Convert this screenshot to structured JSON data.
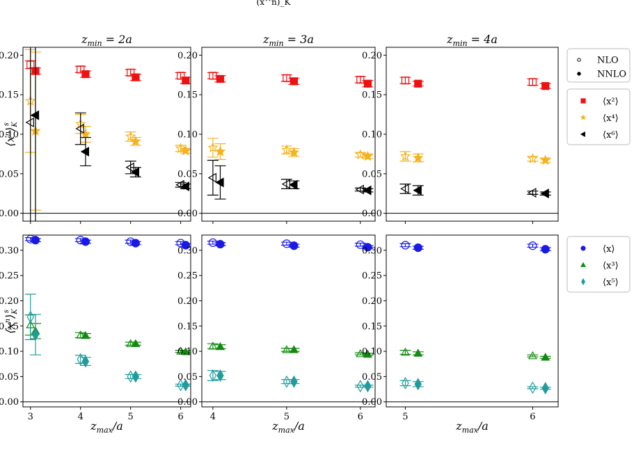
{
  "caption_fragment": "(x^n)_K",
  "colors": {
    "x2": "#ee1111",
    "x4": "#f5b21e",
    "x6": "#000000",
    "x1": "#1a1ae6",
    "x3": "#138a13",
    "x5": "#1f9c9c"
  },
  "column_titles": [
    "z_min = 2a",
    "z_min = 3a",
    "z_min = 4a"
  ],
  "xlabel": "z_max/a",
  "ylabel": "⟨x^n⟩_K^s",
  "legend_method": [
    {
      "label": "NLO",
      "marker": "open-circle"
    },
    {
      "label": "NNLO",
      "marker": "filled-circle"
    }
  ],
  "legend_top": [
    {
      "label": "⟨x²⟩",
      "marker": "square",
      "color": "#ee1111"
    },
    {
      "label": "⟨x⁴⟩",
      "marker": "star",
      "color": "#f5b21e"
    },
    {
      "label": "⟨x⁶⟩",
      "marker": "triangle-left",
      "color": "#000000"
    }
  ],
  "legend_bottom": [
    {
      "label": "⟨x⟩",
      "marker": "circle",
      "color": "#1a1ae6"
    },
    {
      "label": "⟨x³⟩",
      "marker": "triangle-up",
      "color": "#138a13"
    },
    {
      "label": "⟨x⁵⟩",
      "marker": "diamond",
      "color": "#1f9c9c"
    }
  ],
  "chart_data": [
    {
      "type": "scatter",
      "title": "z_min = 2a",
      "row": "top",
      "col": 0,
      "xticks": [
        3,
        4,
        5,
        6
      ],
      "ylim": [
        -0.01,
        0.21
      ],
      "yticks": [
        0.0,
        0.05,
        0.1,
        0.15,
        0.2
      ],
      "series": [
        {
          "name": "⟨x²⟩ NLO",
          "moment": "x2",
          "order": "NLO",
          "x": [
            3,
            4,
            5,
            6
          ],
          "y": [
            0.188,
            0.182,
            0.178,
            0.174
          ],
          "err": [
            0.005,
            0.004,
            0.004,
            0.004
          ]
        },
        {
          "name": "⟨x²⟩ NNLO",
          "moment": "x2",
          "order": "NNLO",
          "x": [
            3,
            4,
            5,
            6
          ],
          "y": [
            0.18,
            0.176,
            0.172,
            0.168
          ],
          "err": [
            0.004,
            0.004,
            0.004,
            0.004
          ]
        },
        {
          "name": "⟨x⁴⟩ NLO",
          "moment": "x4",
          "order": "NLO",
          "x": [
            3,
            4,
            5,
            6
          ],
          "y": [
            0.142,
            0.113,
            0.097,
            0.082
          ],
          "err": [
            0.065,
            0.012,
            0.006,
            0.004
          ]
        },
        {
          "name": "⟨x⁴⟩ NNLO",
          "moment": "x4",
          "order": "NNLO",
          "x": [
            3,
            4,
            5,
            6
          ],
          "y": [
            0.104,
            0.1,
            0.091,
            0.079
          ],
          "err": [
            0.1,
            0.01,
            0.005,
            0.003
          ]
        },
        {
          "name": "⟨x⁶⟩ NLO",
          "moment": "x6",
          "order": "NLO",
          "x": [
            3,
            4,
            5,
            6
          ],
          "y": [
            0.115,
            0.107,
            0.058,
            0.036
          ],
          "err": [
            0.15,
            0.02,
            0.008,
            0.003
          ]
        },
        {
          "name": "⟨x⁶⟩ NNLO",
          "moment": "x6",
          "order": "NNLO",
          "x": [
            3,
            4,
            5,
            6
          ],
          "y": [
            0.124,
            0.078,
            0.052,
            0.034
          ],
          "err": [
            0.26,
            0.018,
            0.006,
            0.003
          ]
        }
      ]
    },
    {
      "type": "scatter",
      "title": "z_min = 3a",
      "row": "top",
      "col": 1,
      "xticks": [
        4,
        5,
        6
      ],
      "ylim": [
        -0.01,
        0.21
      ],
      "yticks": [
        0.0,
        0.05,
        0.1,
        0.15,
        0.2
      ],
      "series": [
        {
          "name": "⟨x²⟩ NLO",
          "moment": "x2",
          "order": "NLO",
          "x": [
            4,
            5,
            6
          ],
          "y": [
            0.174,
            0.171,
            0.169
          ],
          "err": [
            0.004,
            0.004,
            0.004
          ]
        },
        {
          "name": "⟨x²⟩ NNLO",
          "moment": "x2",
          "order": "NNLO",
          "x": [
            4,
            5,
            6
          ],
          "y": [
            0.17,
            0.167,
            0.164
          ],
          "err": [
            0.004,
            0.004,
            0.004
          ]
        },
        {
          "name": "⟨x⁴⟩ NLO",
          "moment": "x4",
          "order": "NLO",
          "x": [
            4,
            5,
            6
          ],
          "y": [
            0.083,
            0.08,
            0.074
          ],
          "err": [
            0.012,
            0.005,
            0.003
          ]
        },
        {
          "name": "⟨x⁴⟩ NNLO",
          "moment": "x4",
          "order": "NNLO",
          "x": [
            4,
            5,
            6
          ],
          "y": [
            0.078,
            0.077,
            0.072
          ],
          "err": [
            0.01,
            0.005,
            0.003
          ]
        },
        {
          "name": "⟨x⁶⟩ NLO",
          "moment": "x6",
          "order": "NLO",
          "x": [
            4,
            5,
            6
          ],
          "y": [
            0.045,
            0.037,
            0.03
          ],
          "err": [
            0.022,
            0.006,
            0.002
          ]
        },
        {
          "name": "⟨x⁶⟩ NNLO",
          "moment": "x6",
          "order": "NNLO",
          "x": [
            4,
            5,
            6
          ],
          "y": [
            0.039,
            0.036,
            0.029
          ],
          "err": [
            0.021,
            0.005,
            0.002
          ]
        }
      ]
    },
    {
      "type": "scatter",
      "title": "z_min = 4a",
      "row": "top",
      "col": 2,
      "xticks": [
        5,
        6
      ],
      "ylim": [
        -0.01,
        0.21
      ],
      "yticks": [
        0.0,
        0.05,
        0.1,
        0.15,
        0.2
      ],
      "series": [
        {
          "name": "⟨x²⟩ NLO",
          "moment": "x2",
          "order": "NLO",
          "x": [
            5,
            6
          ],
          "y": [
            0.168,
            0.166
          ],
          "err": [
            0.004,
            0.004
          ]
        },
        {
          "name": "⟨x²⟩ NNLO",
          "moment": "x2",
          "order": "NNLO",
          "x": [
            5,
            6
          ],
          "y": [
            0.164,
            0.161
          ],
          "err": [
            0.003,
            0.003
          ]
        },
        {
          "name": "⟨x⁴⟩ NLO",
          "moment": "x4",
          "order": "NLO",
          "x": [
            5,
            6
          ],
          "y": [
            0.072,
            0.069
          ],
          "err": [
            0.006,
            0.003
          ]
        },
        {
          "name": "⟨x⁴⟩ NNLO",
          "moment": "x4",
          "order": "NNLO",
          "x": [
            5,
            6
          ],
          "y": [
            0.07,
            0.067
          ],
          "err": [
            0.005,
            0.003
          ]
        },
        {
          "name": "⟨x⁶⟩ NLO",
          "moment": "x6",
          "order": "NLO",
          "x": [
            5,
            6
          ],
          "y": [
            0.031,
            0.026
          ],
          "err": [
            0.006,
            0.002
          ]
        },
        {
          "name": "⟨x⁶⟩ NNLO",
          "moment": "x6",
          "order": "NNLO",
          "x": [
            5,
            6
          ],
          "y": [
            0.029,
            0.025
          ],
          "err": [
            0.006,
            0.002
          ]
        }
      ]
    },
    {
      "type": "scatter",
      "title": "",
      "row": "bottom",
      "col": 0,
      "xticks": [
        3,
        4,
        5,
        6
      ],
      "ylim": [
        -0.01,
        0.33
      ],
      "yticks": [
        0.0,
        0.05,
        0.1,
        0.15,
        0.2,
        0.25,
        0.3
      ],
      "series": [
        {
          "name": "⟨x⟩ NLO",
          "moment": "x1",
          "order": "NLO",
          "x": [
            3,
            4,
            5,
            6
          ],
          "y": [
            0.322,
            0.32,
            0.317,
            0.314
          ],
          "err": [
            0.003,
            0.003,
            0.003,
            0.003
          ]
        },
        {
          "name": "⟨x⟩ NNLO",
          "moment": "x1",
          "order": "NNLO",
          "x": [
            3,
            4,
            5,
            6
          ],
          "y": [
            0.32,
            0.317,
            0.314,
            0.31
          ],
          "err": [
            0.003,
            0.003,
            0.003,
            0.003
          ]
        },
        {
          "name": "⟨x³⟩ NLO",
          "moment": "x3",
          "order": "NLO",
          "x": [
            3,
            4,
            5,
            6
          ],
          "y": [
            0.152,
            0.132,
            0.115,
            0.1
          ],
          "err": [
            0.02,
            0.005,
            0.003,
            0.002
          ]
        },
        {
          "name": "⟨x³⟩ NNLO",
          "moment": "x3",
          "order": "NNLO",
          "x": [
            3,
            4,
            5,
            6
          ],
          "y": [
            0.14,
            0.131,
            0.115,
            0.099
          ],
          "err": [
            0.015,
            0.004,
            0.003,
            0.002
          ]
        },
        {
          "name": "⟨x⁵⟩ NLO",
          "moment": "x5",
          "order": "NLO",
          "x": [
            3,
            4,
            5,
            6
          ],
          "y": [
            0.168,
            0.084,
            0.05,
            0.033
          ],
          "err": [
            0.045,
            0.008,
            0.004,
            0.002
          ]
        },
        {
          "name": "⟨x⁵⟩ NNLO",
          "moment": "x5",
          "order": "NNLO",
          "x": [
            3,
            4,
            5,
            6
          ],
          "y": [
            0.133,
            0.08,
            0.05,
            0.033
          ],
          "err": [
            0.04,
            0.008,
            0.004,
            0.002
          ]
        }
      ]
    },
    {
      "type": "scatter",
      "title": "",
      "row": "bottom",
      "col": 1,
      "xticks": [
        4,
        5,
        6
      ],
      "ylim": [
        -0.01,
        0.33
      ],
      "yticks": [
        0.0,
        0.05,
        0.1,
        0.15,
        0.2,
        0.25,
        0.3
      ],
      "series": [
        {
          "name": "⟨x⟩ NLO",
          "moment": "x1",
          "order": "NLO",
          "x": [
            4,
            5,
            6
          ],
          "y": [
            0.315,
            0.313,
            0.311
          ],
          "err": [
            0.003,
            0.003,
            0.003
          ]
        },
        {
          "name": "⟨x⟩ NNLO",
          "moment": "x1",
          "order": "NNLO",
          "x": [
            4,
            5,
            6
          ],
          "y": [
            0.312,
            0.309,
            0.306
          ],
          "err": [
            0.003,
            0.003,
            0.003
          ]
        },
        {
          "name": "⟨x³⟩ NLO",
          "moment": "x3",
          "order": "NLO",
          "x": [
            4,
            5,
            6
          ],
          "y": [
            0.11,
            0.103,
            0.095
          ],
          "err": [
            0.005,
            0.003,
            0.002
          ]
        },
        {
          "name": "⟨x³⟩ NNLO",
          "moment": "x3",
          "order": "NNLO",
          "x": [
            4,
            5,
            6
          ],
          "y": [
            0.109,
            0.103,
            0.094
          ],
          "err": [
            0.004,
            0.003,
            0.002
          ]
        },
        {
          "name": "⟨x⁵⟩ NLO",
          "moment": "x5",
          "order": "NLO",
          "x": [
            4,
            5,
            6
          ],
          "y": [
            0.052,
            0.04,
            0.031
          ],
          "err": [
            0.01,
            0.004,
            0.002
          ]
        },
        {
          "name": "⟨x⁵⟩ NNLO",
          "moment": "x5",
          "order": "NNLO",
          "x": [
            4,
            5,
            6
          ],
          "y": [
            0.052,
            0.04,
            0.031
          ],
          "err": [
            0.008,
            0.004,
            0.002
          ]
        }
      ]
    },
    {
      "type": "scatter",
      "title": "",
      "row": "bottom",
      "col": 2,
      "xticks": [
        5,
        6
      ],
      "ylim": [
        -0.01,
        0.33
      ],
      "yticks": [
        0.0,
        0.05,
        0.1,
        0.15,
        0.2,
        0.25,
        0.3
      ],
      "series": [
        {
          "name": "⟨x⟩ NLO",
          "moment": "x1",
          "order": "NLO",
          "x": [
            5,
            6
          ],
          "y": [
            0.31,
            0.309
          ],
          "err": [
            0.003,
            0.003
          ]
        },
        {
          "name": "⟨x⟩ NNLO",
          "moment": "x1",
          "order": "NNLO",
          "x": [
            5,
            6
          ],
          "y": [
            0.305,
            0.302
          ],
          "err": [
            0.003,
            0.003
          ]
        },
        {
          "name": "⟨x³⟩ NLO",
          "moment": "x3",
          "order": "NLO",
          "x": [
            5,
            6
          ],
          "y": [
            0.098,
            0.091
          ],
          "err": [
            0.004,
            0.002
          ]
        },
        {
          "name": "⟨x³⟩ NNLO",
          "moment": "x3",
          "order": "NNLO",
          "x": [
            5,
            6
          ],
          "y": [
            0.096,
            0.088
          ],
          "err": [
            0.003,
            0.002
          ]
        },
        {
          "name": "⟨x⁵⟩ NLO",
          "moment": "x5",
          "order": "NLO",
          "x": [
            5,
            6
          ],
          "y": [
            0.037,
            0.028
          ],
          "err": [
            0.005,
            0.002
          ]
        },
        {
          "name": "⟨x⁵⟩ NNLO",
          "moment": "x5",
          "order": "NNLO",
          "x": [
            5,
            6
          ],
          "y": [
            0.035,
            0.027
          ],
          "err": [
            0.005,
            0.002
          ]
        }
      ]
    }
  ]
}
